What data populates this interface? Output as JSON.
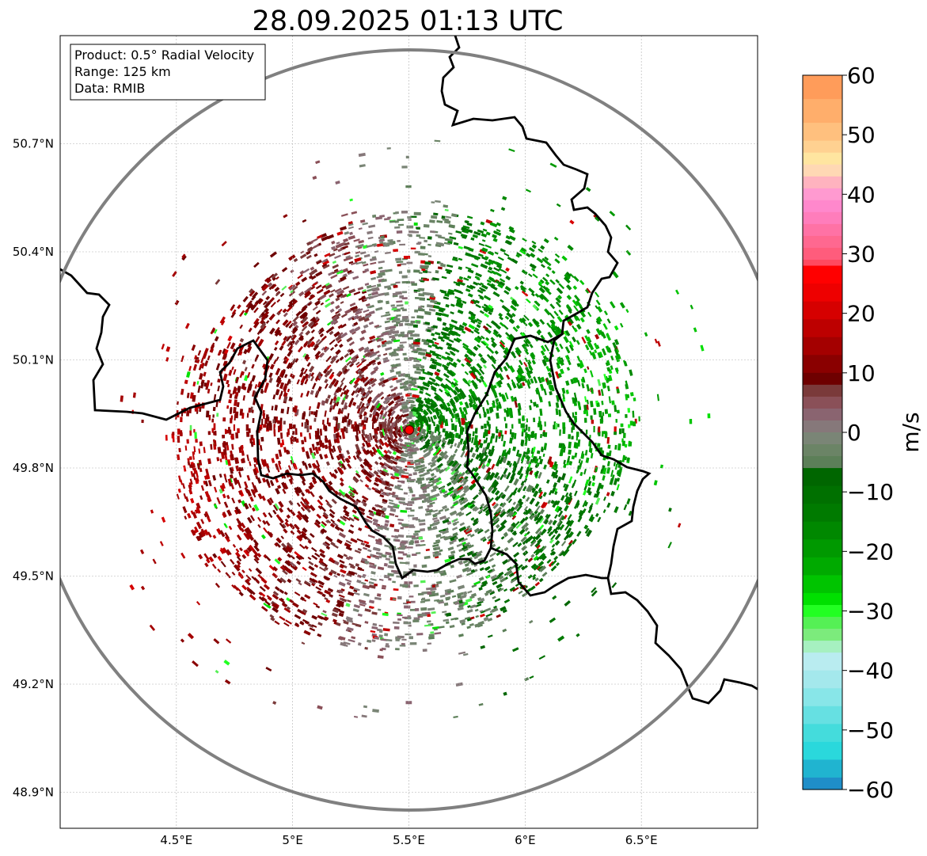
{
  "title": "28.09.2025 01:13 UTC",
  "info_box": {
    "product": "Product: 0.5° Radial Velocity",
    "range": "Range: 125 km",
    "data_source": "Data: RMIB"
  },
  "axes": {
    "lon_ticks": [
      "4.5°E",
      "5°E",
      "5.5°E",
      "6°E",
      "6.5°E"
    ],
    "lat_ticks": [
      "50.7°N",
      "50.4°N",
      "50.1°N",
      "49.8°N",
      "49.5°N",
      "49.2°N",
      "48.9°N"
    ],
    "gridlines": true
  },
  "map_data": {
    "projection": "plate carree",
    "lon_range": [
      4.0,
      7.0
    ],
    "lat_range": [
      48.8,
      51.0
    ],
    "radar_site": {
      "lon": 5.505,
      "lat": 49.914
    },
    "range_ring_km": 125,
    "colors": {
      "border": "#000000",
      "range_ring": "#808080",
      "radar_marker": "#ff0000",
      "grid": "#b0b0b0"
    }
  },
  "colorbar": {
    "label": "m/s",
    "min": -60,
    "max": 60,
    "tick_labels": [
      "60",
      "50",
      "40",
      "30",
      "20",
      "10",
      "0",
      "−10",
      "−20",
      "−30",
      "−40",
      "−50",
      "−60"
    ],
    "tick_values": [
      60,
      50,
      40,
      30,
      20,
      10,
      0,
      -10,
      -20,
      -30,
      -40,
      -50,
      -60
    ],
    "stops": [
      {
        "v": 60,
        "color": "#ff9c5a"
      },
      {
        "v": 56,
        "color": "#ffae6b"
      },
      {
        "v": 52,
        "color": "#ffc07e"
      },
      {
        "v": 49,
        "color": "#ffd191"
      },
      {
        "v": 47,
        "color": "#ffe5a0"
      },
      {
        "v": 45,
        "color": "#ffd8b4"
      },
      {
        "v": 43,
        "color": "#ffb3bf"
      },
      {
        "v": 41,
        "color": "#ff9ad0"
      },
      {
        "v": 39,
        "color": "#ff88cc"
      },
      {
        "v": 37,
        "color": "#ff7dbb"
      },
      {
        "v": 35,
        "color": "#ff72a5"
      },
      {
        "v": 33,
        "color": "#ff6890"
      },
      {
        "v": 31,
        "color": "#ff5c7c"
      },
      {
        "v": 29,
        "color": "#ff4a60"
      },
      {
        "v": 28,
        "color": "#ff0000"
      },
      {
        "v": 25,
        "color": "#ee0000"
      },
      {
        "v": 22,
        "color": "#d60000"
      },
      {
        "v": 19,
        "color": "#bd0000"
      },
      {
        "v": 16,
        "color": "#a40000"
      },
      {
        "v": 13,
        "color": "#8a0000"
      },
      {
        "v": 10,
        "color": "#6e0000"
      },
      {
        "v": 8,
        "color": "#7a3a3a"
      },
      {
        "v": 6,
        "color": "#8a5058"
      },
      {
        "v": 4,
        "color": "#8a6470"
      },
      {
        "v": 2,
        "color": "#86787a"
      },
      {
        "v": 0,
        "color": "#7a8576"
      },
      {
        "v": -2,
        "color": "#6b8466"
      },
      {
        "v": -4,
        "color": "#5c7f58"
      },
      {
        "v": -6,
        "color": "#006600"
      },
      {
        "v": -9,
        "color": "#007000"
      },
      {
        "v": -12,
        "color": "#007a00"
      },
      {
        "v": -15,
        "color": "#008800"
      },
      {
        "v": -18,
        "color": "#009900"
      },
      {
        "v": -21,
        "color": "#00aa00"
      },
      {
        "v": -24,
        "color": "#00c400"
      },
      {
        "v": -27,
        "color": "#00e000"
      },
      {
        "v": -29,
        "color": "#22ff22"
      },
      {
        "v": -31,
        "color": "#55f055"
      },
      {
        "v": -33,
        "color": "#7ceb7c"
      },
      {
        "v": -35,
        "color": "#a6f0c0"
      },
      {
        "v": -37,
        "color": "#b9ecf0"
      },
      {
        "v": -40,
        "color": "#a4e8ec"
      },
      {
        "v": -43,
        "color": "#88e6e8"
      },
      {
        "v": -46,
        "color": "#66e0e2"
      },
      {
        "v": -49,
        "color": "#44dcdc"
      },
      {
        "v": -52,
        "color": "#2ad8dc"
      },
      {
        "v": -55,
        "color": "#20b4d0"
      },
      {
        "v": -58,
        "color": "#1f8ec8"
      },
      {
        "v": -60,
        "color": "#1f7ac0"
      }
    ]
  }
}
